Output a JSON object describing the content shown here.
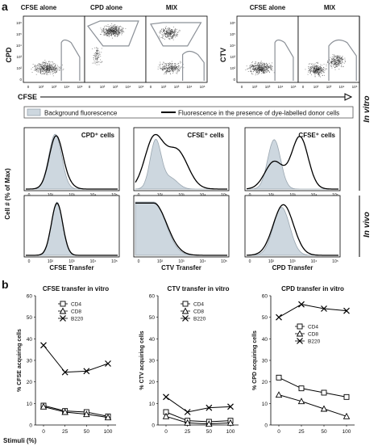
{
  "figure": {
    "panel_a": "a",
    "panel_b": "b",
    "flow": {
      "cpd_axis_label": "CPD",
      "ctv_axis_label": "CTV",
      "cfse_axis_label": "CFSE",
      "ticks_y": [
        "10⁶",
        "10⁵",
        "10⁴",
        "10³",
        "10²",
        "0"
      ],
      "ticks_x": [
        "0",
        "10²",
        "10³",
        "10⁴",
        "10⁵"
      ],
      "plot_titles_left": [
        "CFSE alone",
        "CPD alone",
        "MIX"
      ],
      "plot_titles_right": [
        "CFSE alone",
        "MIX"
      ]
    },
    "legend": {
      "background": "Background fluorescence",
      "presence": "Fluorescence in the presence of dye-labelled donor cells"
    },
    "side_labels": {
      "in_vitro": "In vitro",
      "in_vivo": "In vivo"
    },
    "histograms": {
      "y_label": "Cell # (% of Max)",
      "row1_titles": [
        "CPD⁺ cells",
        "CFSE⁺ cells",
        "CFSE⁺ cells"
      ],
      "row2_xlabels": [
        "CFSE Transfer",
        "CTV Transfer",
        "CPD Transfer"
      ],
      "ticks_x": [
        "0",
        "10²",
        "10³",
        "10⁴",
        "10⁵"
      ]
    },
    "colors": {
      "background_fill": "#cdd7df",
      "background_line": "#9aa6b0",
      "presence_line": "#000000",
      "gate_line": "#8b9097"
    }
  },
  "chart_data": [
    {
      "type": "line",
      "title": "CFSE transfer in vitro",
      "xlabel": "Stimuli (%)",
      "ylabel": "% CFSE acquiring cells",
      "x": [
        0,
        25,
        50,
        100
      ],
      "xticks": [
        "0",
        "25",
        "50",
        "100"
      ],
      "ylim": [
        0,
        60
      ],
      "yticks": [
        "0",
        "10",
        "20",
        "30",
        "40",
        "50",
        "60"
      ],
      "series": [
        {
          "name": "CD4",
          "marker": "square",
          "values": [
            9,
            6.5,
            6,
            4
          ]
        },
        {
          "name": "CD8",
          "marker": "triangle",
          "values": [
            8.5,
            6,
            5,
            3.5
          ]
        },
        {
          "name": "B220",
          "marker": "x",
          "values": [
            37,
            24.5,
            25,
            28.5
          ]
        }
      ],
      "legend": "top-center"
    },
    {
      "type": "line",
      "title": "CTV transfer in vitro",
      "xlabel": "",
      "ylabel": "% CTV acquiring cells",
      "x": [
        0,
        25,
        50,
        100
      ],
      "xticks": [
        "0",
        "25",
        "50",
        "100"
      ],
      "ylim": [
        0,
        60
      ],
      "yticks": [
        "0",
        "10",
        "20",
        "30",
        "40",
        "50",
        "60"
      ],
      "series": [
        {
          "name": "CD4",
          "marker": "square",
          "values": [
            6,
            2,
            1.5,
            2
          ]
        },
        {
          "name": "CD8",
          "marker": "triangle",
          "values": [
            4,
            1,
            0.5,
            1
          ]
        },
        {
          "name": "B220",
          "marker": "x",
          "values": [
            13,
            6,
            8,
            8.5
          ]
        }
      ],
      "legend": "top-center"
    },
    {
      "type": "line",
      "title": "CPD transfer in vitro",
      "xlabel": "",
      "ylabel": "% CPD acquiring cells",
      "x": [
        0,
        25,
        50,
        100
      ],
      "xticks": [
        "0",
        "25",
        "50",
        "100"
      ],
      "ylim": [
        0,
        60
      ],
      "yticks": [
        "0",
        "10",
        "20",
        "30",
        "40",
        "50",
        "60"
      ],
      "series": [
        {
          "name": "CD4",
          "marker": "square",
          "values": [
            22,
            17,
            15,
            13
          ]
        },
        {
          "name": "CD8",
          "marker": "triangle",
          "values": [
            14,
            11,
            7.5,
            4
          ]
        },
        {
          "name": "B220",
          "marker": "x",
          "values": [
            50,
            56,
            54,
            53
          ]
        }
      ],
      "legend": "center"
    }
  ]
}
